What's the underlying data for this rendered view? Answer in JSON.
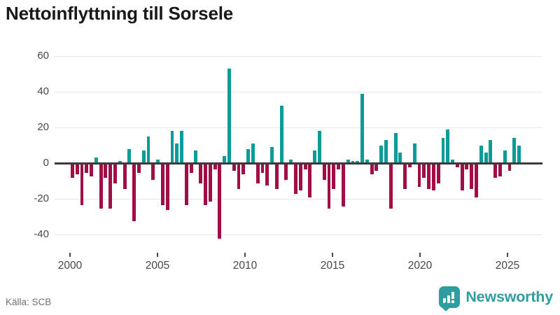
{
  "header": {
    "title": "Nettoinflyttning till Sorsele"
  },
  "footer": {
    "source": "Källa: SCB",
    "brand": "Newsworthy"
  },
  "chart_data": {
    "type": "bar",
    "title": "Nettoinflyttning till Sorsele",
    "x_start_year": 2000,
    "x_tick_years": [
      2000,
      2005,
      2010,
      2015,
      2020,
      2025
    ],
    "y_ticks": [
      60,
      40,
      20,
      0,
      -20,
      -40
    ],
    "ylim": [
      -45,
      63
    ],
    "grid": "horizontal",
    "legend": "none",
    "positive_color": "#0b9b98",
    "negative_color": "#a00e45",
    "values": [
      -8,
      -6,
      -23,
      -5,
      -7,
      3,
      -25,
      -8,
      -25,
      -11,
      1,
      -14,
      8,
      -32,
      -5,
      7,
      15,
      -9,
      2,
      -23,
      -26,
      18,
      11,
      18,
      -23,
      -5,
      7,
      -11,
      -23,
      -21,
      -3,
      -42,
      4,
      53,
      -4,
      -14,
      -6,
      8,
      11,
      -11,
      -5,
      -12,
      9,
      -14,
      32,
      -9,
      2,
      -17,
      -15,
      -3,
      -19,
      7,
      18,
      -9,
      -25,
      -14,
      -3,
      -24,
      2,
      1,
      1,
      39,
      2,
      -6,
      -4,
      10,
      13,
      -25,
      17,
      6,
      -14,
      -2,
      11,
      -13,
      -8,
      -14,
      -15,
      -11,
      14,
      19,
      2,
      -2,
      -15,
      -3,
      -14,
      -19,
      10,
      6,
      13,
      -8,
      -7,
      7,
      -4,
      14,
      10
    ]
  }
}
